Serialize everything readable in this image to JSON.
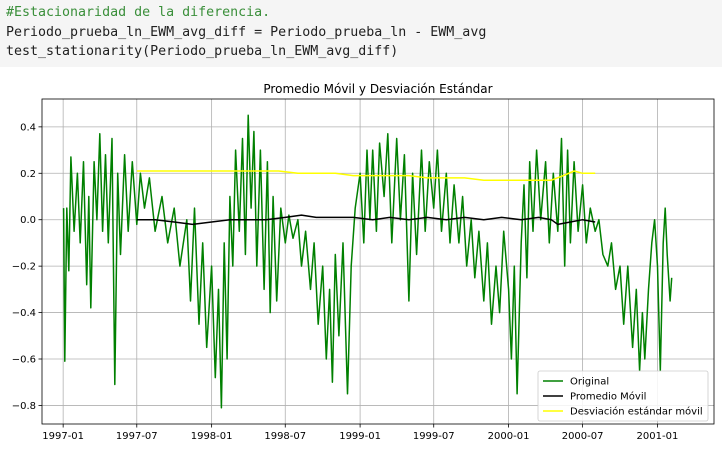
{
  "code": {
    "lines": [
      "#Estacionaridad de la diferencia.",
      "Periodo_prueba_ln_EWM_avg_diff = Periodo_prueba_ln - EWM_avg",
      "test_stationarity(Periodo_prueba_ln_EWM_avg_diff)"
    ]
  },
  "chart_data": {
    "type": "line",
    "title": "Promedio Móvil y Desviación Estándar",
    "xlabel": "",
    "ylabel": "",
    "xlim": [
      "1996-11-10",
      "2001-05-20"
    ],
    "ylim": [
      -0.88,
      0.52
    ],
    "grid": true,
    "legend_position": "lower-right",
    "x_ticks": [
      "1997-01",
      "1997-07",
      "1998-01",
      "1998-07",
      "1999-01",
      "1999-07",
      "2000-01",
      "2000-07",
      "2001-01"
    ],
    "y_ticks": [
      -0.8,
      -0.6,
      -0.4,
      -0.2,
      0.0,
      0.2,
      0.4
    ],
    "y_tick_labels": [
      "−0.8",
      "−0.6",
      "−0.4",
      "−0.2",
      "0.0",
      "0.2",
      "0.4"
    ],
    "series": [
      {
        "name": "Original",
        "color": "#008000",
        "points": [
          [
            "1997-01-02",
            0.05
          ],
          [
            "1997-01-05",
            -0.61
          ],
          [
            "1997-01-10",
            0.05
          ],
          [
            "1997-01-15",
            -0.22
          ],
          [
            "1997-01-20",
            0.27
          ],
          [
            "1997-01-28",
            -0.05
          ],
          [
            "1997-02-05",
            0.2
          ],
          [
            "1997-02-12",
            -0.1
          ],
          [
            "1997-02-20",
            0.25
          ],
          [
            "1997-02-28",
            -0.28
          ],
          [
            "1997-03-05",
            0.1
          ],
          [
            "1997-03-10",
            -0.38
          ],
          [
            "1997-03-18",
            0.25
          ],
          [
            "1997-03-25",
            0.0
          ],
          [
            "1997-04-01",
            0.37
          ],
          [
            "1997-04-08",
            -0.05
          ],
          [
            "1997-04-15",
            0.28
          ],
          [
            "1997-04-22",
            -0.1
          ],
          [
            "1997-05-01",
            0.35
          ],
          [
            "1997-05-08",
            -0.71
          ],
          [
            "1997-05-15",
            0.2
          ],
          [
            "1997-05-22",
            -0.15
          ],
          [
            "1997-06-01",
            0.28
          ],
          [
            "1997-06-10",
            -0.05
          ],
          [
            "1997-06-20",
            0.25
          ],
          [
            "1997-07-01",
            -0.02
          ],
          [
            "1997-07-10",
            0.2
          ],
          [
            "1997-07-20",
            0.05
          ],
          [
            "1997-08-01",
            0.18
          ],
          [
            "1997-08-15",
            -0.05
          ],
          [
            "1997-09-01",
            0.1
          ],
          [
            "1997-09-15",
            -0.1
          ],
          [
            "1997-10-01",
            0.05
          ],
          [
            "1997-10-15",
            -0.2
          ],
          [
            "1997-11-01",
            0.0
          ],
          [
            "1997-11-10",
            -0.35
          ],
          [
            "1997-11-20",
            0.05
          ],
          [
            "1997-12-01",
            -0.45
          ],
          [
            "1997-12-10",
            -0.1
          ],
          [
            "1997-12-20",
            -0.55
          ],
          [
            "1998-01-01",
            -0.2
          ],
          [
            "1998-01-10",
            -0.68
          ],
          [
            "1998-01-18",
            -0.3
          ],
          [
            "1998-01-25",
            -0.81
          ],
          [
            "1998-02-01",
            -0.1
          ],
          [
            "1998-02-08",
            -0.6
          ],
          [
            "1998-02-15",
            0.1
          ],
          [
            "1998-02-22",
            -0.2
          ],
          [
            "1998-03-01",
            0.3
          ],
          [
            "1998-03-10",
            -0.05
          ],
          [
            "1998-03-18",
            0.35
          ],
          [
            "1998-03-25",
            -0.15
          ],
          [
            "1998-04-01",
            0.45
          ],
          [
            "1998-04-08",
            0.05
          ],
          [
            "1998-04-15",
            0.38
          ],
          [
            "1998-04-22",
            -0.2
          ],
          [
            "1998-05-01",
            0.3
          ],
          [
            "1998-05-10",
            -0.3
          ],
          [
            "1998-05-18",
            0.25
          ],
          [
            "1998-05-25",
            -0.4
          ],
          [
            "1998-06-01",
            0.1
          ],
          [
            "1998-06-10",
            -0.35
          ],
          [
            "1998-06-20",
            0.05
          ],
          [
            "1998-07-01",
            -0.1
          ],
          [
            "1998-07-10",
            0.02
          ],
          [
            "1998-07-20",
            -0.08
          ],
          [
            "1998-08-01",
            0.0
          ],
          [
            "1998-08-10",
            -0.2
          ],
          [
            "1998-08-20",
            -0.05
          ],
          [
            "1998-09-01",
            -0.3
          ],
          [
            "1998-09-10",
            -0.1
          ],
          [
            "1998-09-20",
            -0.45
          ],
          [
            "1998-10-01",
            -0.2
          ],
          [
            "1998-10-10",
            -0.6
          ],
          [
            "1998-10-18",
            -0.3
          ],
          [
            "1998-10-25",
            -0.7
          ],
          [
            "1998-11-01",
            -0.15
          ],
          [
            "1998-11-10",
            -0.5
          ],
          [
            "1998-11-20",
            -0.1
          ],
          [
            "1998-12-01",
            -0.75
          ],
          [
            "1998-12-10",
            -0.2
          ],
          [
            "1998-12-20",
            0.05
          ],
          [
            "1999-01-01",
            0.2
          ],
          [
            "1999-01-10",
            -0.1
          ],
          [
            "1999-01-18",
            0.3
          ],
          [
            "1999-01-25",
            0.0
          ],
          [
            "1999-02-01",
            0.3
          ],
          [
            "1999-02-10",
            -0.05
          ],
          [
            "1999-02-18",
            0.33
          ],
          [
            "1999-03-01",
            0.1
          ],
          [
            "1999-03-10",
            0.37
          ],
          [
            "1999-03-20",
            -0.1
          ],
          [
            "1999-04-01",
            0.35
          ],
          [
            "1999-04-10",
            0.0
          ],
          [
            "1999-04-20",
            0.28
          ],
          [
            "1999-05-01",
            -0.35
          ],
          [
            "1999-05-10",
            0.2
          ],
          [
            "1999-05-20",
            -0.15
          ],
          [
            "1999-06-01",
            0.3
          ],
          [
            "1999-06-10",
            -0.05
          ],
          [
            "1999-06-20",
            0.25
          ],
          [
            "1999-07-01",
            0.05
          ],
          [
            "1999-07-10",
            0.3
          ],
          [
            "1999-07-20",
            -0.05
          ],
          [
            "1999-08-01",
            0.2
          ],
          [
            "1999-08-10",
            -0.1
          ],
          [
            "1999-08-20",
            0.15
          ],
          [
            "1999-09-01",
            -0.1
          ],
          [
            "1999-09-10",
            0.1
          ],
          [
            "1999-09-20",
            -0.2
          ],
          [
            "1999-10-01",
            0.0
          ],
          [
            "1999-10-10",
            -0.25
          ],
          [
            "1999-10-20",
            -0.05
          ],
          [
            "1999-11-01",
            -0.35
          ],
          [
            "1999-11-10",
            -0.1
          ],
          [
            "1999-11-20",
            -0.45
          ],
          [
            "1999-12-01",
            -0.2
          ],
          [
            "1999-12-10",
            -0.4
          ],
          [
            "1999-12-20",
            -0.05
          ],
          [
            "2000-01-01",
            -0.3
          ],
          [
            "2000-01-08",
            -0.6
          ],
          [
            "2000-01-15",
            -0.2
          ],
          [
            "2000-01-22",
            -0.75
          ],
          [
            "2000-02-01",
            -0.1
          ],
          [
            "2000-02-08",
            0.15
          ],
          [
            "2000-02-15",
            -0.25
          ],
          [
            "2000-02-22",
            0.25
          ],
          [
            "2000-03-01",
            -0.05
          ],
          [
            "2000-03-10",
            0.3
          ],
          [
            "2000-03-20",
            0.0
          ],
          [
            "2000-04-01",
            0.25
          ],
          [
            "2000-04-10",
            -0.1
          ],
          [
            "2000-04-20",
            0.2
          ],
          [
            "2000-05-01",
            -0.05
          ],
          [
            "2000-05-10",
            0.35
          ],
          [
            "2000-05-18",
            -0.2
          ],
          [
            "2000-05-25",
            0.3
          ],
          [
            "2000-06-01",
            -0.1
          ],
          [
            "2000-06-10",
            0.25
          ],
          [
            "2000-06-20",
            -0.05
          ],
          [
            "2000-07-01",
            0.15
          ],
          [
            "2000-07-10",
            -0.1
          ],
          [
            "2000-07-20",
            0.05
          ],
          [
            "2000-08-01",
            -0.05
          ],
          [
            "2000-08-10",
            0.0
          ],
          [
            "2000-08-20",
            -0.15
          ],
          [
            "2000-09-01",
            -0.2
          ],
          [
            "2000-09-10",
            -0.1
          ],
          [
            "2000-09-20",
            -0.3
          ],
          [
            "2000-10-01",
            -0.2
          ],
          [
            "2000-10-10",
            -0.45
          ],
          [
            "2000-10-20",
            -0.2
          ],
          [
            "2000-11-01",
            -0.55
          ],
          [
            "2000-11-10",
            -0.3
          ],
          [
            "2000-11-18",
            -0.65
          ],
          [
            "2000-11-25",
            -0.4
          ],
          [
            "2000-12-01",
            -0.6
          ],
          [
            "2000-12-10",
            -0.3
          ],
          [
            "2000-12-18",
            -0.1
          ],
          [
            "2000-12-25",
            0.0
          ],
          [
            "2001-01-01",
            -0.2
          ],
          [
            "2001-01-08",
            -0.65
          ],
          [
            "2001-01-15",
            -0.1
          ],
          [
            "2001-01-20",
            0.05
          ],
          [
            "2001-01-25",
            -0.15
          ],
          [
            "2001-02-01",
            -0.35
          ],
          [
            "2001-02-05",
            -0.25
          ]
        ]
      },
      {
        "name": "Promedio Móvil",
        "color": "#000000",
        "points": [
          [
            "1997-07-01",
            0.0
          ],
          [
            "1997-08-15",
            0.0
          ],
          [
            "1997-10-01",
            -0.01
          ],
          [
            "1997-11-15",
            -0.02
          ],
          [
            "1998-01-01",
            -0.01
          ],
          [
            "1998-02-15",
            0.0
          ],
          [
            "1998-04-01",
            0.0
          ],
          [
            "1998-05-15",
            0.0
          ],
          [
            "1998-07-01",
            0.01
          ],
          [
            "1998-08-10",
            0.02
          ],
          [
            "1998-09-15",
            0.01
          ],
          [
            "1998-11-01",
            0.01
          ],
          [
            "1998-12-15",
            0.01
          ],
          [
            "1999-02-01",
            0.0
          ],
          [
            "1999-03-15",
            0.01
          ],
          [
            "1999-05-01",
            0.0
          ],
          [
            "1999-06-15",
            0.01
          ],
          [
            "1999-08-01",
            0.0
          ],
          [
            "1999-09-15",
            0.01
          ],
          [
            "1999-11-01",
            0.0
          ],
          [
            "1999-12-15",
            0.01
          ],
          [
            "2000-02-01",
            0.0
          ],
          [
            "2000-03-15",
            0.01
          ],
          [
            "2000-04-15",
            0.0
          ],
          [
            "2000-05-01",
            -0.02
          ],
          [
            "2000-06-01",
            -0.01
          ],
          [
            "2000-07-01",
            0.0
          ],
          [
            "2000-08-01",
            -0.01
          ]
        ]
      },
      {
        "name": "Desviación estándar móvil",
        "color": "#ffff00",
        "points": [
          [
            "1997-07-01",
            0.21
          ],
          [
            "1997-08-01",
            0.21
          ],
          [
            "1997-09-15",
            0.21
          ],
          [
            "1997-11-01",
            0.21
          ],
          [
            "1997-12-15",
            0.21
          ],
          [
            "1998-02-01",
            0.21
          ],
          [
            "1998-03-15",
            0.21
          ],
          [
            "1998-05-01",
            0.21
          ],
          [
            "1998-06-15",
            0.21
          ],
          [
            "1998-08-01",
            0.2
          ],
          [
            "1998-09-15",
            0.2
          ],
          [
            "1998-11-01",
            0.2
          ],
          [
            "1998-12-15",
            0.19
          ],
          [
            "1999-02-01",
            0.19
          ],
          [
            "1999-03-15",
            0.19
          ],
          [
            "1999-05-01",
            0.19
          ],
          [
            "1999-06-15",
            0.18
          ],
          [
            "1999-08-01",
            0.18
          ],
          [
            "1999-09-15",
            0.18
          ],
          [
            "1999-11-01",
            0.17
          ],
          [
            "1999-12-15",
            0.17
          ],
          [
            "2000-02-01",
            0.17
          ],
          [
            "2000-03-15",
            0.17
          ],
          [
            "2000-04-15",
            0.17
          ],
          [
            "2000-05-15",
            0.19
          ],
          [
            "2000-06-10",
            0.21
          ],
          [
            "2000-07-01",
            0.2
          ],
          [
            "2000-08-01",
            0.2
          ]
        ]
      }
    ]
  }
}
